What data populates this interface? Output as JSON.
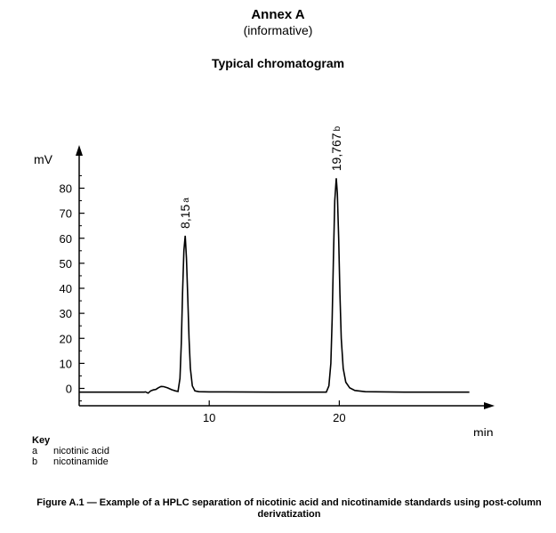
{
  "header": {
    "annex_title": "Annex A",
    "annex_subtitle": "(informative)",
    "chart_heading": "Typical chromatogram"
  },
  "chart_data": {
    "type": "line",
    "ylabel": "mV",
    "xlabel": "min",
    "ylim": [
      -3,
      95
    ],
    "xlim": [
      0,
      31
    ],
    "y_ticks": [
      0,
      10,
      20,
      30,
      40,
      50,
      60,
      70,
      80
    ],
    "x_ticks": [
      10,
      20
    ],
    "peaks": [
      {
        "label": "8,15",
        "marker": "a",
        "retention_time": 8.15,
        "height": 61
      },
      {
        "label": "19,767",
        "marker": "b",
        "retention_time": 19.767,
        "height": 84
      }
    ],
    "series": [
      {
        "values": [
          [
            0,
            -1.5
          ],
          [
            5,
            -1.5
          ],
          [
            5.1,
            -1.4
          ],
          [
            5.3,
            -1.9
          ],
          [
            5.5,
            -1.0
          ],
          [
            5.7,
            -0.6
          ],
          [
            5.9,
            -0.4
          ],
          [
            6.1,
            0.3
          ],
          [
            6.3,
            0.8
          ],
          [
            6.5,
            0.7
          ],
          [
            6.8,
            0.2
          ],
          [
            7.1,
            -0.5
          ],
          [
            7.4,
            -1.0
          ],
          [
            7.6,
            -1.2
          ],
          [
            7.75,
            4
          ],
          [
            7.85,
            18
          ],
          [
            7.95,
            38
          ],
          [
            8.05,
            55
          ],
          [
            8.15,
            61
          ],
          [
            8.25,
            52
          ],
          [
            8.35,
            36
          ],
          [
            8.45,
            20
          ],
          [
            8.55,
            8
          ],
          [
            8.7,
            1
          ],
          [
            8.9,
            -1.0
          ],
          [
            9.2,
            -1.3
          ],
          [
            10,
            -1.4
          ],
          [
            15,
            -1.5
          ],
          [
            19.0,
            -1.5
          ],
          [
            19.2,
            1
          ],
          [
            19.35,
            10
          ],
          [
            19.45,
            28
          ],
          [
            19.55,
            52
          ],
          [
            19.65,
            75
          ],
          [
            19.767,
            84
          ],
          [
            19.85,
            78
          ],
          [
            19.95,
            60
          ],
          [
            20.05,
            38
          ],
          [
            20.15,
            20
          ],
          [
            20.3,
            8
          ],
          [
            20.5,
            2.5
          ],
          [
            20.8,
            0.2
          ],
          [
            21.2,
            -0.8
          ],
          [
            22,
            -1.3
          ],
          [
            25,
            -1.5
          ],
          [
            30,
            -1.5
          ]
        ]
      }
    ]
  },
  "key": {
    "title": "Key",
    "items": [
      {
        "letter": "a",
        "text": "nicotinic acid"
      },
      {
        "letter": "b",
        "text": "nicotinamide"
      }
    ]
  },
  "caption": "Figure A.1 — Example of a HPLC separation of nicotinic acid and nicotinamide standards using post-column derivatization"
}
